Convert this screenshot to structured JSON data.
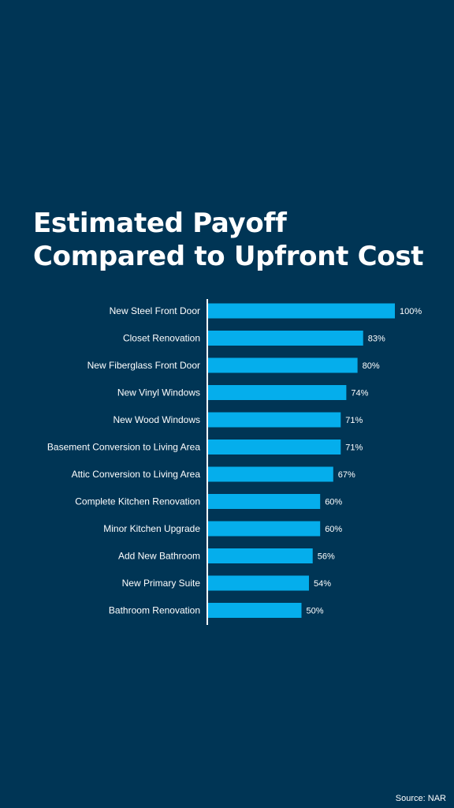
{
  "colors": {
    "background": "#003555",
    "bar": "#05aeec",
    "text": "#ffffff",
    "axis": "#ffffff"
  },
  "title": {
    "line1": "Estimated Payoff",
    "line2": "Compared to Upfront Cost"
  },
  "source": "Source: NAR",
  "chart_data": {
    "type": "bar",
    "orientation": "horizontal",
    "title": "Estimated Payoff Compared to Upfront Cost",
    "categories": [
      "New Steel Front Door",
      "Closet Renovation",
      "New Fiberglass Front Door",
      "New Vinyl Windows",
      "New Wood Windows",
      "Basement Conversion to Living Area",
      "Attic Conversion to Living Area",
      "Complete Kitchen Renovation",
      "Minor Kitchen Upgrade",
      "Add New Bathroom",
      "New Primary Suite",
      "Bathroom Renovation"
    ],
    "values": [
      100,
      83,
      80,
      74,
      71,
      71,
      67,
      60,
      60,
      56,
      54,
      50
    ],
    "value_labels": [
      "100%",
      "83%",
      "80%",
      "74%",
      "71%",
      "71%",
      "67%",
      "60%",
      "60%",
      "56%",
      "54%",
      "50%"
    ],
    "xlim": [
      0,
      100
    ],
    "unit": "%",
    "grid": false,
    "legend": "none"
  }
}
